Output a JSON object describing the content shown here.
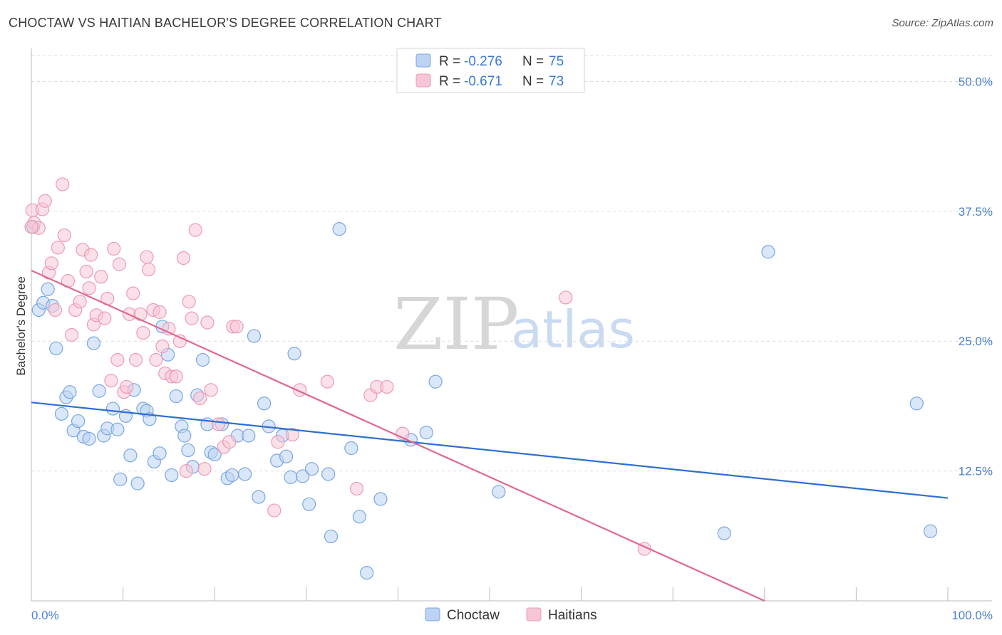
{
  "header": {
    "title": "CHOCTAW VS HAITIAN BACHELOR'S DEGREE CORRELATION CHART",
    "source": "Source: ZipAtlas.com"
  },
  "watermark": {
    "zip": "ZIP",
    "atlas": "atlas"
  },
  "legend": {
    "rows": [
      {
        "r_label": "R =",
        "r_value": "-0.276",
        "n_label": "N =",
        "n_value": "75"
      },
      {
        "r_label": "R =",
        "r_value": "-0.671",
        "n_label": "N =",
        "n_value": "73"
      }
    ]
  },
  "colors": {
    "choctaw_fill": "#bcd3f3",
    "choctaw_stroke": "#7aa6e0",
    "choctaw_line": "#2f6fd0",
    "haitians_fill": "#f7c6d6",
    "haitians_stroke": "#eb9ab6",
    "haitians_line": "#e0678f",
    "tick_text": "#4a7fd0",
    "grid": "#dcdcdc"
  },
  "chart_data": {
    "type": "scatter",
    "title": "CHOCTAW VS HAITIAN BACHELOR'S DEGREE CORRELATION CHART",
    "xlabel": "",
    "ylabel": "Bachelor's Degree",
    "xlim": [
      0,
      100
    ],
    "ylim": [
      0,
      52.5
    ],
    "x_tick_labels": [
      "0.0%",
      "100.0%"
    ],
    "y_ticks": [
      12.5,
      25.0,
      37.5,
      50.0
    ],
    "y_tick_labels": [
      "12.5%",
      "25.0%",
      "37.5%",
      "50.0%"
    ],
    "grid": "horizontal dashed",
    "legend_position": "bottom",
    "series": [
      {
        "name": "Choctaw",
        "points": [
          [
            0.2,
            36.0
          ],
          [
            0.8,
            28.0
          ],
          [
            1.3,
            28.7
          ],
          [
            1.8,
            30.0
          ],
          [
            2.3,
            28.4
          ],
          [
            2.7,
            24.3
          ],
          [
            3.3,
            18.0
          ],
          [
            3.8,
            19.6
          ],
          [
            4.2,
            20.1
          ],
          [
            4.6,
            16.4
          ],
          [
            5.1,
            17.3
          ],
          [
            5.7,
            15.8
          ],
          [
            6.3,
            15.6
          ],
          [
            6.8,
            24.8
          ],
          [
            7.4,
            20.2
          ],
          [
            7.9,
            15.9
          ],
          [
            8.3,
            16.6
          ],
          [
            8.9,
            18.5
          ],
          [
            9.4,
            16.5
          ],
          [
            9.7,
            11.7
          ],
          [
            10.3,
            17.8
          ],
          [
            10.8,
            14.0
          ],
          [
            11.2,
            20.3
          ],
          [
            11.6,
            11.3
          ],
          [
            12.2,
            18.5
          ],
          [
            12.6,
            18.3
          ],
          [
            12.9,
            17.5
          ],
          [
            13.4,
            13.4
          ],
          [
            14.0,
            14.2
          ],
          [
            14.3,
            26.4
          ],
          [
            14.9,
            23.7
          ],
          [
            15.3,
            12.1
          ],
          [
            15.8,
            19.7
          ],
          [
            16.4,
            16.8
          ],
          [
            16.7,
            15.9
          ],
          [
            17.1,
            14.5
          ],
          [
            17.6,
            12.9
          ],
          [
            18.1,
            19.8
          ],
          [
            18.7,
            23.2
          ],
          [
            19.2,
            17.0
          ],
          [
            19.6,
            14.3
          ],
          [
            20.0,
            14.1
          ],
          [
            20.8,
            17.0
          ],
          [
            21.4,
            11.8
          ],
          [
            21.9,
            12.1
          ],
          [
            22.5,
            15.9
          ],
          [
            23.3,
            12.2
          ],
          [
            23.7,
            15.9
          ],
          [
            24.3,
            25.5
          ],
          [
            24.8,
            10.0
          ],
          [
            25.4,
            19.0
          ],
          [
            25.9,
            16.8
          ],
          [
            26.8,
            13.5
          ],
          [
            27.4,
            15.9
          ],
          [
            27.8,
            13.9
          ],
          [
            28.3,
            11.9
          ],
          [
            28.7,
            23.8
          ],
          [
            29.6,
            12.0
          ],
          [
            30.3,
            9.3
          ],
          [
            30.6,
            12.7
          ],
          [
            32.4,
            12.2
          ],
          [
            32.7,
            6.2
          ],
          [
            33.6,
            35.8
          ],
          [
            34.9,
            14.7
          ],
          [
            35.8,
            8.1
          ],
          [
            36.6,
            2.7
          ],
          [
            38.1,
            9.8
          ],
          [
            41.4,
            15.5
          ],
          [
            43.1,
            16.2
          ],
          [
            44.1,
            21.1
          ],
          [
            51.0,
            10.5
          ],
          [
            75.6,
            6.5
          ],
          [
            80.4,
            33.6
          ],
          [
            96.6,
            19.0
          ],
          [
            98.1,
            6.7
          ]
        ]
      },
      {
        "name": "Haitians",
        "points": [
          [
            0.1,
            37.6
          ],
          [
            0.3,
            36.4
          ],
          [
            0.8,
            35.9
          ],
          [
            1.2,
            37.7
          ],
          [
            1.5,
            38.5
          ],
          [
            1.9,
            31.6
          ],
          [
            2.2,
            32.5
          ],
          [
            2.6,
            28.0
          ],
          [
            2.9,
            34.0
          ],
          [
            3.4,
            40.1
          ],
          [
            3.6,
            35.2
          ],
          [
            4.0,
            30.8
          ],
          [
            4.4,
            25.6
          ],
          [
            4.8,
            28.0
          ],
          [
            5.3,
            28.8
          ],
          [
            5.6,
            33.8
          ],
          [
            6.0,
            31.7
          ],
          [
            6.3,
            30.1
          ],
          [
            6.5,
            33.3
          ],
          [
            6.8,
            26.6
          ],
          [
            7.1,
            27.5
          ],
          [
            7.6,
            31.2
          ],
          [
            8.0,
            27.2
          ],
          [
            8.3,
            29.1
          ],
          [
            8.7,
            21.2
          ],
          [
            9.0,
            33.9
          ],
          [
            9.4,
            23.2
          ],
          [
            9.6,
            32.4
          ],
          [
            10.1,
            20.1
          ],
          [
            10.4,
            20.6
          ],
          [
            10.7,
            27.6
          ],
          [
            11.1,
            29.6
          ],
          [
            11.4,
            23.2
          ],
          [
            11.9,
            27.6
          ],
          [
            12.2,
            25.8
          ],
          [
            12.6,
            33.1
          ],
          [
            12.8,
            31.9
          ],
          [
            13.3,
            28.0
          ],
          [
            13.6,
            23.2
          ],
          [
            14.0,
            27.8
          ],
          [
            14.3,
            24.5
          ],
          [
            14.6,
            21.9
          ],
          [
            15.0,
            26.2
          ],
          [
            15.3,
            21.6
          ],
          [
            15.8,
            21.6
          ],
          [
            16.2,
            25.0
          ],
          [
            16.6,
            33.0
          ],
          [
            16.9,
            12.5
          ],
          [
            17.2,
            28.8
          ],
          [
            17.5,
            27.2
          ],
          [
            17.9,
            35.7
          ],
          [
            18.4,
            19.5
          ],
          [
            18.9,
            12.7
          ],
          [
            19.2,
            26.8
          ],
          [
            19.6,
            20.3
          ],
          [
            20.4,
            17.0
          ],
          [
            21.0,
            14.8
          ],
          [
            21.6,
            15.3
          ],
          [
            22.0,
            26.4
          ],
          [
            22.4,
            26.4
          ],
          [
            26.5,
            8.7
          ],
          [
            26.9,
            15.3
          ],
          [
            28.5,
            16.0
          ],
          [
            29.3,
            20.3
          ],
          [
            32.3,
            21.1
          ],
          [
            35.5,
            10.8
          ],
          [
            37.0,
            19.8
          ],
          [
            37.7,
            20.6
          ],
          [
            38.8,
            20.6
          ],
          [
            40.5,
            16.1
          ],
          [
            58.3,
            29.2
          ],
          [
            66.9,
            5.0
          ],
          [
            0.0,
            36.0
          ]
        ]
      }
    ],
    "trend_lines": [
      {
        "name": "Choctaw",
        "x": [
          0,
          100
        ],
        "y": [
          19.1,
          9.9
        ]
      },
      {
        "name": "Haitians",
        "x": [
          0,
          80
        ],
        "y": [
          31.8,
          0.0
        ]
      }
    ]
  }
}
